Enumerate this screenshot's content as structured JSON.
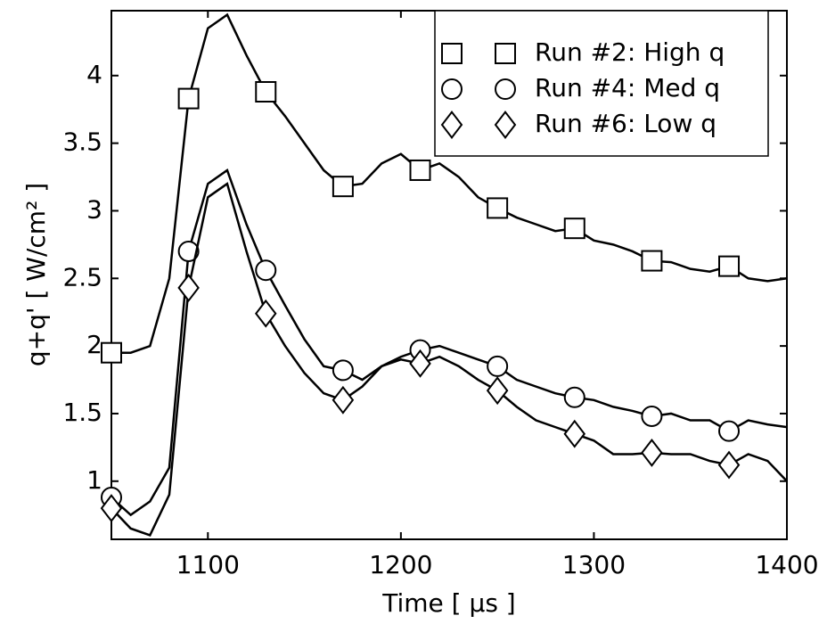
{
  "chart_data": {
    "type": "line",
    "xlabel": "Time  [ μs ]",
    "ylabel": "q+q' [ W/cm² ]",
    "x": [
      1050,
      1060,
      1070,
      1080,
      1090,
      1100,
      1110,
      1120,
      1130,
      1140,
      1150,
      1160,
      1170,
      1180,
      1190,
      1200,
      1210,
      1220,
      1230,
      1240,
      1250,
      1260,
      1270,
      1280,
      1290,
      1300,
      1310,
      1320,
      1330,
      1340,
      1350,
      1360,
      1370,
      1380,
      1390,
      1400
    ],
    "series": [
      {
        "name": "Run #2: High q",
        "color": "#000000",
        "marker": "square",
        "values": [
          1.95,
          1.95,
          2.0,
          2.5,
          3.83,
          4.35,
          4.45,
          4.15,
          3.88,
          3.7,
          3.5,
          3.3,
          3.18,
          3.2,
          3.35,
          3.42,
          3.3,
          3.35,
          3.25,
          3.1,
          3.02,
          2.95,
          2.9,
          2.85,
          2.87,
          2.78,
          2.75,
          2.7,
          2.63,
          2.62,
          2.57,
          2.55,
          2.59,
          2.5,
          2.48,
          2.5
        ]
      },
      {
        "name": "Run #4: Med q",
        "color": "#000000",
        "marker": "circle",
        "values": [
          0.88,
          0.75,
          0.85,
          1.1,
          2.7,
          3.2,
          3.3,
          2.9,
          2.56,
          2.3,
          2.05,
          1.85,
          1.82,
          1.75,
          1.85,
          1.92,
          1.97,
          2.0,
          1.95,
          1.9,
          1.85,
          1.75,
          1.7,
          1.65,
          1.62,
          1.6,
          1.55,
          1.52,
          1.48,
          1.5,
          1.45,
          1.45,
          1.37,
          1.45,
          1.42,
          1.4
        ]
      },
      {
        "name": "Run #6: Low q",
        "color": "#000000",
        "marker": "diamond",
        "values": [
          0.8,
          0.65,
          0.6,
          0.9,
          2.43,
          3.1,
          3.2,
          2.7,
          2.24,
          2.0,
          1.8,
          1.65,
          1.6,
          1.7,
          1.85,
          1.9,
          1.87,
          1.92,
          1.85,
          1.75,
          1.67,
          1.55,
          1.45,
          1.4,
          1.35,
          1.3,
          1.2,
          1.2,
          1.21,
          1.2,
          1.2,
          1.15,
          1.12,
          1.2,
          1.15,
          1.0
        ]
      }
    ],
    "markevery": 4,
    "xlim": [
      1050,
      1400
    ],
    "xticks": [
      1100,
      1200,
      1300,
      1400
    ],
    "ylim": [
      0.57,
      4.48
    ],
    "yticks": [
      1,
      1.5,
      2,
      2.5,
      3,
      3.5,
      4
    ],
    "legend": "upper right",
    "grid": false
  }
}
